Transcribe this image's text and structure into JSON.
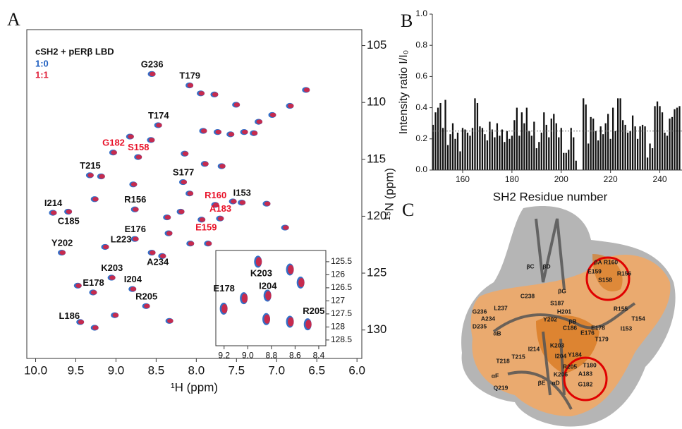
{
  "panels": [
    "A",
    "B",
    "C"
  ],
  "chart_data": [
    {
      "type": "scatter",
      "title": "cSH2 + pERβ LBD",
      "x_label": "¹H (ppm)",
      "y_label": "¹⁵N (ppm)",
      "xlim": [
        10.11,
        5.94
      ],
      "ylim": [
        103.6,
        132.5
      ],
      "xticks": [
        {
          "value": 10,
          "label": "10.0"
        },
        9.5,
        {
          "value": 9,
          "label": "9.0"
        },
        8.5,
        {
          "value": 8,
          "label": "8.0"
        },
        7.5,
        {
          "value": 7,
          "label": "7.0"
        },
        6.5,
        {
          "value": 6,
          "label": "6.0"
        }
      ],
      "yticks": [
        105,
        110,
        115,
        120,
        125,
        130
      ],
      "x": [
        8.55,
        8.08,
        8.47,
        9.03,
        8.72,
        9.32,
        8.16,
        7.43,
        8.76,
        9.78,
        9.59,
        7.76,
        7.7,
        7.93,
        8.76,
        9.13,
        9.67,
        8.55,
        9.05,
        9.28,
        8.79,
        8.62,
        9.44,
        7.94,
        7.77,
        7.5,
        6.83,
        6.63,
        7.91,
        7.73,
        7.57,
        7.4,
        7.28,
        7.22,
        7.05,
        8.82,
        9.18,
        8.78,
        9.26,
        8.36,
        8.19,
        8.08,
        7.89,
        7.68,
        7.54,
        7.12,
        6.89,
        7.85,
        8.07,
        8.34,
        8.42,
        9.47,
        9.01,
        8.33,
        9.26,
        8.56,
        8.14
      ],
      "series": [
        {
          "name": "1:0",
          "color": "#1f5fc0",
          "values": [
            107.5,
            108.5,
            112.0,
            114.4,
            114.8,
            116.4,
            117.0,
            118.8,
            119.4,
            119.7,
            119.6,
            119.0,
            120.2,
            120.3,
            122.0,
            122.7,
            123.2,
            123.2,
            125.4,
            126.7,
            126.4,
            127.9,
            129.3,
            109.2,
            109.3,
            110.2,
            110.3,
            108.9,
            112.5,
            112.6,
            112.8,
            112.6,
            112.7,
            111.7,
            111.1,
            113.0,
            116.5,
            117.2,
            118.5,
            120.1,
            119.6,
            118.0,
            115.4,
            115.6,
            118.7,
            118.9,
            121.0,
            122.4,
            122.4,
            121.5,
            123.5,
            126.1,
            128.7,
            129.2,
            129.8,
            113.3,
            114.5
          ]
        },
        {
          "name": "1:1",
          "color": "#e0203a",
          "values": [
            107.5,
            108.5,
            112.0,
            114.4,
            114.8,
            116.4,
            117.0,
            118.8,
            119.4,
            119.7,
            119.6,
            119.0,
            120.2,
            120.3,
            122.0,
            122.7,
            123.2,
            123.2,
            125.4,
            126.7,
            126.4,
            127.9,
            129.3,
            109.2,
            109.3,
            110.2,
            110.3,
            108.9,
            112.5,
            112.6,
            112.8,
            112.6,
            112.7,
            111.7,
            111.1,
            113.0,
            116.5,
            117.2,
            118.5,
            120.1,
            119.6,
            118.0,
            115.4,
            115.6,
            118.7,
            118.9,
            121.0,
            122.4,
            122.4,
            121.5,
            123.5,
            126.1,
            128.7,
            129.2,
            129.8,
            113.3,
            114.5
          ]
        }
      ],
      "peak_labels": [
        "G236",
        "T179",
        "T174",
        "G182",
        "S158",
        "T215",
        "S177",
        "I153",
        "R156",
        "I214",
        "C185",
        "R160",
        "A183",
        "E159",
        "E176",
        "L223",
        "Y202",
        "A234",
        "K203",
        "E178",
        "I204",
        "R205",
        "L186",
        null,
        null,
        null,
        null,
        null,
        null,
        null,
        null,
        null,
        null,
        null,
        null,
        null,
        null,
        null,
        null,
        null,
        null,
        null,
        null,
        null,
        null,
        null,
        null,
        null,
        null,
        null,
        null,
        null,
        null,
        null,
        null,
        null,
        null
      ],
      "peak_label_colors": [
        "#111111",
        "#111111",
        "#111111",
        "#e8132a",
        "#e8132a",
        "#111111",
        "#111111",
        "#111111",
        "#111111",
        "#111111",
        "#111111",
        "#e8132a",
        "#e8132a",
        "#e8132a",
        "#111111",
        "#111111",
        "#111111",
        "#111111",
        "#111111",
        "#111111",
        "#111111",
        "#111111",
        "#111111",
        null,
        null,
        null,
        null,
        null,
        null,
        null,
        null,
        null,
        null,
        null,
        null,
        null,
        null,
        null,
        null,
        null,
        null,
        null,
        null,
        null,
        null,
        null,
        null,
        null,
        null,
        null,
        null,
        null,
        null,
        null,
        null,
        null,
        null
      ]
    },
    {
      "type": "scatter",
      "xlim": [
        9.27,
        8.34
      ],
      "ylim": [
        125.07,
        128.72
      ],
      "xticks": [
        9.2,
        {
          "value": 9,
          "label": "9.0"
        },
        8.8,
        8.6,
        8.4
      ],
      "yticks": [
        125.5,
        126,
        126.5,
        127,
        127.5,
        128,
        128.5
      ],
      "x": [
        9.2,
        9.03,
        8.91,
        8.83,
        8.64,
        8.49,
        8.55,
        8.64,
        8.84
      ],
      "series": [
        {
          "name": "1:0",
          "color": "#1f5fc0",
          "values": [
            127.3,
            126.9,
            125.5,
            126.8,
            127.8,
            127.9,
            126.3,
            125.8,
            127.7
          ]
        },
        {
          "name": "1:1",
          "color": "#e0203a",
          "values": [
            127.3,
            126.9,
            125.5,
            126.8,
            127.8,
            127.9,
            126.3,
            125.8,
            127.7
          ]
        }
      ],
      "peak_labels": [
        "E178",
        null,
        "K203",
        "I204",
        null,
        "R205",
        null,
        null,
        null
      ]
    },
    {
      "type": "bar",
      "x_label": "SH2 Residue number",
      "y_label": "Intensity ratio I/I₀",
      "xlim": [
        147.7,
        249
      ],
      "ylim": [
        0,
        1
      ],
      "xticks": [
        160,
        180,
        200,
        220,
        240
      ],
      "yticks": [
        {
          "value": 0,
          "label": "0.0"
        },
        0.2,
        0.4,
        0.6,
        0.8,
        {
          "value": 1,
          "label": "1.0"
        }
      ],
      "color": "#111111",
      "reference_line": 0.25,
      "x": [
        148,
        149,
        150,
        151,
        152,
        153,
        154,
        155,
        156,
        157,
        158,
        159,
        160,
        161,
        162,
        163,
        164,
        165,
        166,
        167,
        168,
        169,
        170,
        171,
        172,
        173,
        174,
        175,
        176,
        177,
        178,
        179,
        180,
        181,
        182,
        183,
        184,
        185,
        186,
        187,
        188,
        189,
        190,
        191,
        192,
        193,
        194,
        195,
        196,
        197,
        198,
        199,
        200,
        201,
        202,
        203,
        204,
        205,
        206,
        207,
        208,
        209,
        210,
        211,
        212,
        213,
        214,
        215,
        216,
        217,
        218,
        219,
        220,
        221,
        222,
        223,
        224,
        225,
        226,
        227,
        228,
        229,
        230,
        231,
        232,
        233,
        234,
        235,
        236,
        237,
        238,
        239,
        240,
        241,
        242,
        243,
        244,
        245,
        246,
        247,
        248
      ],
      "values": [
        0.29,
        0.37,
        0.4,
        0.43,
        0.27,
        0.45,
        0.16,
        0.23,
        0.3,
        0.2,
        0.24,
        0.12,
        0.27,
        0.26,
        0.24,
        0.22,
        0.27,
        0.46,
        0.43,
        0.28,
        0.27,
        0.23,
        0.19,
        0.31,
        0.26,
        0.21,
        0.3,
        0.22,
        0.26,
        0.18,
        0.25,
        0.2,
        0.22,
        0.32,
        0.4,
        0.22,
        0.37,
        0.3,
        0.4,
        0.25,
        0.22,
        0.31,
        0.14,
        0.18,
        0.24,
        0.37,
        0.29,
        0.21,
        0.33,
        0.36,
        0.3,
        0.21,
        0.27,
        0.11,
        0.11,
        0.13,
        0.27,
        0.21,
        0.06,
        null,
        null,
        0.46,
        0.42,
        0.17,
        0.34,
        0.33,
        0.25,
        0.19,
        0.28,
        0.23,
        0.3,
        0.36,
        0.2,
        0.4,
        0.25,
        0.46,
        0.46,
        0.32,
        0.29,
        0.24,
        0.25,
        0.35,
        0.28,
        0.2,
        0.28,
        0.29,
        0.28,
        0.08,
        0.17,
        0.14,
        0.41,
        0.44,
        0.41,
        0.37,
        0.24,
        0.22,
        0.33,
        0.34,
        0.39,
        0.4,
        0.41
      ]
    }
  ],
  "panel_c": {
    "labels": [
      "βC",
      "βD",
      "βA",
      "R160",
      "E159",
      "S158",
      "R156",
      "βG",
      "C238",
      "S187",
      "H201",
      "R155",
      "G236",
      "L237",
      "A234",
      "Y202",
      "βB",
      "T154",
      "D235",
      "αB",
      "C186",
      "I153",
      "E178",
      "K203",
      "E176",
      "T179",
      "I214",
      "Y184",
      "T180",
      "T215",
      "I204",
      "T218",
      "K206",
      "R205",
      "A183",
      "αF",
      "Q219",
      "βE",
      "αD",
      "G182"
    ]
  }
}
